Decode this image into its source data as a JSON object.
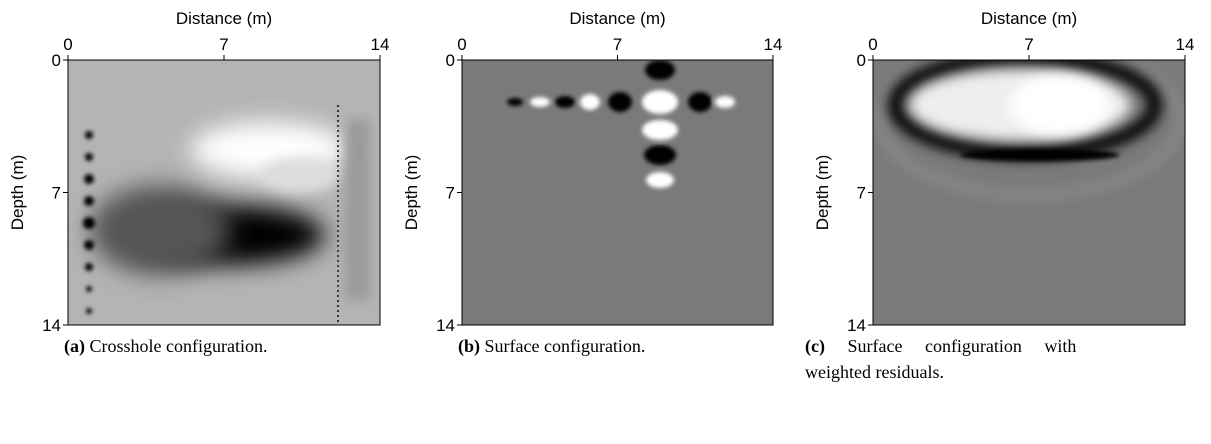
{
  "figure": {
    "panels": [
      {
        "xlabel": "Distance (m)",
        "ylabel": "Depth (m)",
        "xlim": [
          0,
          14
        ],
        "ylim": [
          0,
          14
        ],
        "xticks": [
          0,
          7,
          14
        ],
        "yticks": [
          0,
          7,
          14
        ],
        "caption_label": "(a)",
        "caption": "Crosshole configuration."
      },
      {
        "xlabel": "Distance (m)",
        "ylabel": "Depth (m)",
        "xlim": [
          0,
          14
        ],
        "ylim": [
          0,
          14
        ],
        "xticks": [
          0,
          7,
          14
        ],
        "yticks": [
          0,
          7,
          14
        ],
        "caption_label": "(b)",
        "caption": "Surface configuration."
      },
      {
        "xlabel": "Distance (m)",
        "ylabel": "Depth (m)",
        "xlim": [
          0,
          14
        ],
        "ylim": [
          0,
          14
        ],
        "xticks": [
          0,
          7,
          14
        ],
        "yticks": [
          0,
          7,
          14
        ],
        "caption_label": "(c)",
        "caption": "Surface configuration with weighted residuals."
      }
    ]
  }
}
